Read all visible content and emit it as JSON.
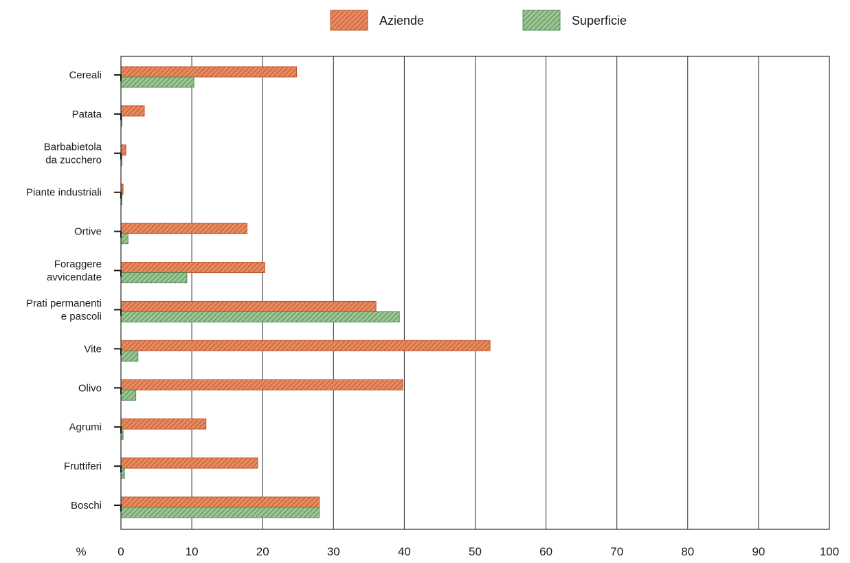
{
  "chart_data": {
    "type": "bar",
    "orientation": "horizontal",
    "title": "",
    "xlabel": "%",
    "ylabel": "",
    "xlim": [
      0,
      100
    ],
    "xticks": [
      "0",
      "10",
      "20",
      "30",
      "40",
      "50",
      "60",
      "70",
      "80",
      "90",
      "100"
    ],
    "grid": "vertical",
    "legend_position": "top-center",
    "categories": [
      "Cereali",
      "Patata",
      "Barbabietola\nda zucchero",
      "Piante industriali",
      "Ortive",
      "Foraggere\navvicendate",
      "Prati permanenti\ne pascoli",
      "Vite",
      "Olivo",
      "Agrumi",
      "Fruttiferi",
      "Boschi"
    ],
    "series": [
      {
        "name": "Aziende",
        "color": "#e07a52",
        "values": [
          24.8,
          3.3,
          0.7,
          0.3,
          17.8,
          20.3,
          36.0,
          52.1,
          39.8,
          12.0,
          19.3,
          28.0
        ]
      },
      {
        "name": "Superficie",
        "color": "#7fb07a",
        "values": [
          10.3,
          0.1,
          0.1,
          0.1,
          1.0,
          9.3,
          39.3,
          2.4,
          2.1,
          0.3,
          0.5,
          28.0
        ]
      }
    ]
  }
}
